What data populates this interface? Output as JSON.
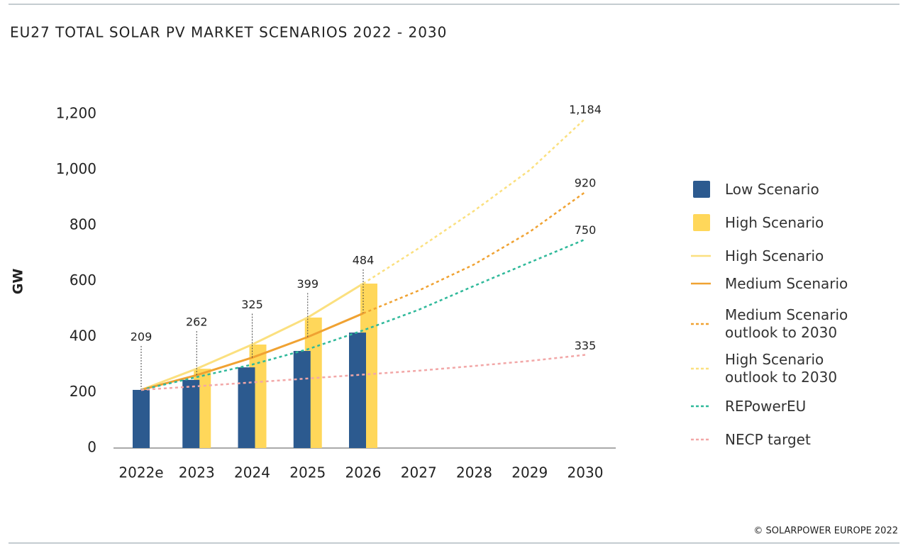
{
  "chart_data": {
    "type": "combo",
    "title": "EU27 TOTAL SOLAR PV MARKET SCENARIOS 2022 - 2030",
    "y_label": "GW",
    "source": "© SOLARPOWER EUROPE 2022",
    "categories": [
      "2022e",
      "2023",
      "2024",
      "2025",
      "2026",
      "2027",
      "2028",
      "2029",
      "2030"
    ],
    "ylim": [
      0,
      1200
    ],
    "yticks": [
      0,
      200,
      400,
      600,
      800,
      {
        "value": 1000,
        "label": "1,000"
      },
      {
        "value": 1200,
        "label": "1,200"
      }
    ],
    "grid": false,
    "series": [
      {
        "name": "Low Scenario",
        "kind": "bar",
        "color": "#2c5a8f",
        "values": [
          209,
          245,
          290,
          349,
          415,
          null,
          null,
          null,
          null
        ]
      },
      {
        "name": "High Scenario",
        "kind": "bar",
        "color": "#ffd75a",
        "values": [
          null,
          285,
          372,
          469,
          591,
          null,
          null,
          null,
          null
        ]
      },
      {
        "name": "High Scenario",
        "kind": "line",
        "dashed": false,
        "color": "#fbe07f",
        "values": [
          209,
          285,
          372,
          469,
          591,
          null,
          null,
          null,
          null
        ]
      },
      {
        "name": "Medium Scenario",
        "kind": "line",
        "dashed": false,
        "color": "#f0a232",
        "values": [
          209,
          262,
          325,
          399,
          484,
          null,
          null,
          null,
          null
        ],
        "value_labels": [
          "209",
          "262",
          "325",
          "399",
          "484",
          null,
          null,
          null,
          null
        ]
      },
      {
        "name": "Medium Scenario outlook to 2030",
        "kind": "line",
        "dashed": true,
        "color": "#f0a232",
        "values": [
          null,
          null,
          null,
          null,
          484,
          566,
          660,
          777,
          920
        ],
        "value_labels": [
          null,
          null,
          null,
          null,
          null,
          null,
          null,
          null,
          "920"
        ]
      },
      {
        "name": "High Scenario outlook to 2030",
        "kind": "line",
        "dashed": true,
        "color": "#fbe07f",
        "values": [
          null,
          null,
          null,
          null,
          591,
          718,
          853,
          999,
          1184
        ],
        "value_labels": [
          null,
          null,
          null,
          null,
          null,
          null,
          null,
          null,
          "1,184"
        ]
      },
      {
        "name": "REPowerEU",
        "kind": "line",
        "dashed": true,
        "color": "#2fb99a",
        "values": [
          209,
          255,
          300,
          355,
          423,
          497,
          583,
          667,
          750
        ],
        "value_labels": [
          null,
          null,
          null,
          null,
          null,
          null,
          null,
          null,
          "750"
        ]
      },
      {
        "name": "NECP target",
        "kind": "line",
        "dashed": true,
        "color": "#f2a7a7",
        "values": [
          209,
          222,
          236,
          250,
          264,
          278,
          295,
          313,
          335
        ],
        "value_labels": [
          null,
          null,
          null,
          null,
          null,
          null,
          null,
          null,
          "335"
        ]
      }
    ]
  }
}
